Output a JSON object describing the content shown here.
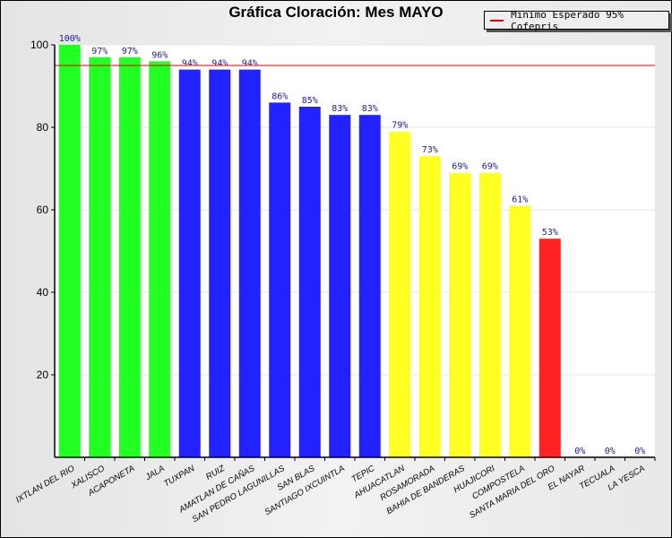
{
  "chart_data": {
    "type": "bar",
    "title": "Gráfica Cloración: Mes MAYO",
    "xlabel": "",
    "ylabel": "",
    "ylim": [
      0,
      100
    ],
    "yticks": [
      20,
      40,
      60,
      80,
      100
    ],
    "categories": [
      "IXTLAN DEL RIO",
      "XALISCO",
      "ACAPONETA",
      "JALA",
      "TUXPAN",
      "RUIZ",
      "AMATLAN DE CAÑAS",
      "SAN PEDRO LAGUNILLAS",
      "SAN BLAS",
      "SANTIAGO IXCUINTLA",
      "TEPIC",
      "AHUACATLAN",
      "ROSAMORADA",
      "BAHIA DE BANDERAS",
      "HUAJICORI",
      "COMPOSTELA",
      "SANTA MARIA DEL ORO",
      "EL NAYAR",
      "TECUALA",
      "LA YESCA"
    ],
    "values": [
      100,
      97,
      97,
      96,
      94,
      94,
      94,
      86,
      85,
      83,
      83,
      79,
      73,
      69,
      69,
      61,
      53,
      0,
      0,
      0
    ],
    "data_labels": [
      "100%",
      "97%",
      "97%",
      "96%",
      "94%",
      "94%",
      "94%",
      "86%",
      "85%",
      "83%",
      "83%",
      "79%",
      "73%",
      "69%",
      "69%",
      "61%",
      "53%",
      "0%",
      "0%",
      "0%"
    ],
    "bar_colors": [
      "#22ff22",
      "#22ff22",
      "#22ff22",
      "#22ff22",
      "#2222ff",
      "#2222ff",
      "#2222ff",
      "#2222ff",
      "#2222ff",
      "#2222ff",
      "#2222ff",
      "#ffff22",
      "#ffff22",
      "#ffff22",
      "#ffff22",
      "#ffff22",
      "#ff2222",
      "#ff2222",
      "#ff2222",
      "#ff2222"
    ],
    "reference_line": {
      "value": 95,
      "label": "Minimo Esperado 95% Cofepris",
      "color": "#dd0000"
    },
    "legend_position": "top-right",
    "grid": true
  }
}
